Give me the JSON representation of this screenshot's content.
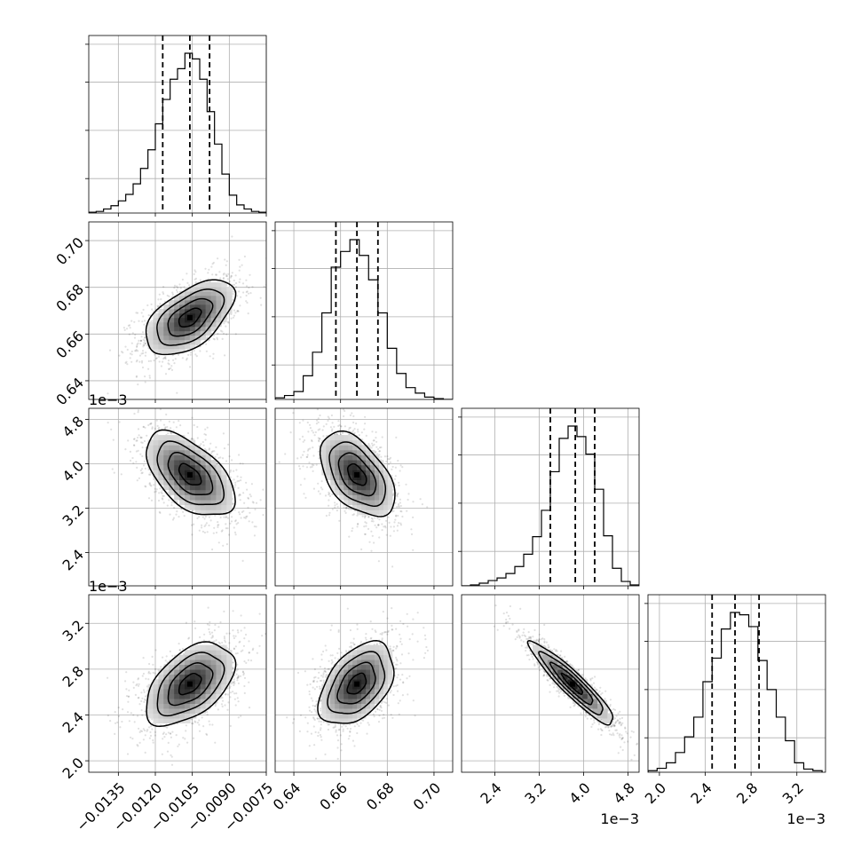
{
  "chart_data": {
    "type": "corner",
    "parameters": [
      {
        "range": [
          -0.0147,
          -0.0075
        ],
        "ticks": [
          -0.0135,
          -0.012,
          -0.0105,
          -0.009,
          -0.0075
        ],
        "tick_labels": [
          "−0.0135",
          "−0.0120",
          "−0.0105",
          "−0.0090",
          "−0.0075"
        ],
        "offset_text": "",
        "quantiles": [
          -0.0117,
          -0.0106,
          -0.0098
        ],
        "hist_bins": [
          -0.0147,
          -0.0144,
          -0.0141,
          -0.0138,
          -0.0135,
          -0.0132,
          -0.0129,
          -0.0126,
          -0.0123,
          -0.012,
          -0.0117,
          -0.0114,
          -0.0111,
          -0.0108,
          -0.0105,
          -0.0102,
          -0.0099,
          -0.0096,
          -0.0093,
          -0.009,
          -0.0087,
          -0.0084,
          -0.0081,
          -0.0078,
          -0.0075
        ],
        "hist_counts": [
          1,
          2,
          5,
          9,
          15,
          23,
          36,
          55,
          78,
          110,
          140,
          165,
          178,
          197,
          190,
          165,
          125,
          85,
          48,
          22,
          10,
          5,
          2,
          1
        ]
      },
      {
        "range": [
          0.632,
          0.708
        ],
        "ticks": [
          0.64,
          0.66,
          0.68,
          0.7
        ],
        "tick_labels": [
          "0.64",
          "0.66",
          "0.68",
          "0.70"
        ],
        "offset_text": "",
        "quantiles": [
          0.658,
          0.667,
          0.676
        ],
        "hist_bins": [
          0.632,
          0.636,
          0.64,
          0.644,
          0.648,
          0.652,
          0.656,
          0.66,
          0.664,
          0.668,
          0.672,
          0.676,
          0.68,
          0.684,
          0.688,
          0.692,
          0.696,
          0.7,
          0.704,
          0.708
        ],
        "hist_counts": [
          2,
          5,
          10,
          30,
          60,
          110,
          168,
          188,
          203,
          183,
          152,
          110,
          65,
          33,
          15,
          8,
          3,
          1,
          0
        ]
      },
      {
        "range": [
          1.8,
          5.0
        ],
        "ticks": [
          2.4,
          3.2,
          4.0,
          4.8
        ],
        "tick_labels": [
          "2.4",
          "3.2",
          "4.0",
          "4.8"
        ],
        "offset_text": "1e−3",
        "quantiles": [
          3.4,
          3.85,
          4.2
        ],
        "hist_bins": [
          1.8,
          1.96,
          2.12,
          2.28,
          2.44,
          2.6,
          2.76,
          2.92,
          3.08,
          3.24,
          3.4,
          3.56,
          3.72,
          3.88,
          4.04,
          4.2,
          4.36,
          4.52,
          4.68,
          4.84,
          5.0
        ],
        "hist_counts": [
          0,
          1,
          3,
          6,
          9,
          14,
          22,
          36,
          56,
          86,
          130,
          168,
          182,
          170,
          150,
          110,
          57,
          20,
          5,
          1
        ]
      },
      {
        "range": [
          1.9,
          3.45
        ],
        "ticks": [
          2.0,
          2.4,
          2.8,
          3.2
        ],
        "tick_labels": [
          "2.0",
          "2.4",
          "2.8",
          "3.2"
        ],
        "offset_text": "1e−3",
        "quantiles": [
          2.46,
          2.66,
          2.87
        ],
        "hist_bins": [
          1.9,
          1.98,
          2.06,
          2.14,
          2.22,
          2.3,
          2.38,
          2.46,
          2.54,
          2.62,
          2.7,
          2.78,
          2.86,
          2.94,
          3.02,
          3.1,
          3.18,
          3.26,
          3.34,
          3.42
        ],
        "hist_counts": [
          2,
          5,
          12,
          25,
          45,
          70,
          115,
          145,
          182,
          203,
          200,
          185,
          142,
          105,
          70,
          40,
          12,
          4,
          2
        ]
      }
    ],
    "pairs": [
      {
        "row": 1,
        "col": 0,
        "mean": [
          -0.0106,
          0.667
        ],
        "sd": [
          0.0009,
          0.008
        ],
        "corr": 0.55
      },
      {
        "row": 2,
        "col": 0,
        "mean": [
          -0.0106,
          3.8
        ],
        "sd": [
          0.0009,
          0.38
        ],
        "corr": -0.55
      },
      {
        "row": 2,
        "col": 1,
        "mean": [
          0.667,
          3.8
        ],
        "sd": [
          0.008,
          0.38
        ],
        "corr": -0.5
      },
      {
        "row": 3,
        "col": 0,
        "mean": [
          -0.0106,
          2.67
        ],
        "sd": [
          0.0009,
          0.18
        ],
        "corr": 0.5
      },
      {
        "row": 3,
        "col": 1,
        "mean": [
          0.667,
          2.67
        ],
        "sd": [
          0.008,
          0.18
        ],
        "corr": 0.45
      },
      {
        "row": 3,
        "col": 2,
        "mean": [
          3.8,
          2.67
        ],
        "sd": [
          0.38,
          0.18
        ],
        "corr": -0.93
      }
    ],
    "grid": true,
    "contour_levels_sigma": [
      0.5,
      1.0,
      1.5,
      2.0
    ]
  }
}
